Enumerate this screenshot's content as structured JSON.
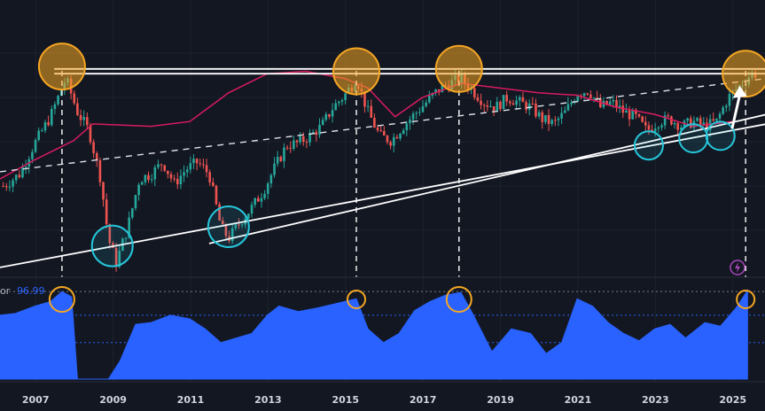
{
  "chart_data": {
    "type": "candlestick",
    "x_axis": {
      "tick_labels": [
        "2007",
        "2009",
        "2011",
        "2013",
        "2015",
        "2017",
        "2019",
        "2021",
        "2023",
        "2025"
      ],
      "range": [
        2006.1,
        2025.85
      ]
    },
    "price_pane": {
      "ylim": [
        0,
        100
      ],
      "candles_monthly_close_approx": [
        [
          2006.2,
          37
        ],
        [
          2006.6,
          42
        ],
        [
          2007.0,
          55
        ],
        [
          2007.4,
          66
        ],
        [
          2007.8,
          82
        ],
        [
          2008.1,
          68
        ],
        [
          2008.4,
          60
        ],
        [
          2008.7,
          40
        ],
        [
          2008.9,
          15
        ],
        [
          2009.1,
          5
        ],
        [
          2009.4,
          20
        ],
        [
          2009.7,
          40
        ],
        [
          2010.0,
          42
        ],
        [
          2010.3,
          47
        ],
        [
          2010.6,
          38
        ],
        [
          2010.9,
          44
        ],
        [
          2011.2,
          47
        ],
        [
          2011.5,
          42
        ],
        [
          2011.8,
          20
        ],
        [
          2012.0,
          15
        ],
        [
          2012.3,
          22
        ],
        [
          2012.6,
          28
        ],
        [
          2012.9,
          35
        ],
        [
          2013.2,
          45
        ],
        [
          2013.5,
          54
        ],
        [
          2013.8,
          55
        ],
        [
          2014.1,
          58
        ],
        [
          2014.4,
          62
        ],
        [
          2014.7,
          70
        ],
        [
          2015.0,
          75
        ],
        [
          2015.3,
          82
        ],
        [
          2015.6,
          68
        ],
        [
          2015.9,
          58
        ],
        [
          2016.2,
          56
        ],
        [
          2016.5,
          62
        ],
        [
          2016.8,
          67
        ],
        [
          2017.1,
          72
        ],
        [
          2017.4,
          77
        ],
        [
          2017.7,
          80
        ],
        [
          2018.0,
          82
        ],
        [
          2018.3,
          77
        ],
        [
          2018.6,
          72
        ],
        [
          2018.9,
          70
        ],
        [
          2019.2,
          74
        ],
        [
          2019.5,
          72
        ],
        [
          2019.8,
          70
        ],
        [
          2020.1,
          65
        ],
        [
          2020.4,
          63
        ],
        [
          2020.7,
          68
        ],
        [
          2021.0,
          76
        ],
        [
          2021.3,
          77
        ],
        [
          2021.6,
          70
        ],
        [
          2021.9,
          72
        ],
        [
          2022.2,
          68
        ],
        [
          2022.5,
          66
        ],
        [
          2022.8,
          60
        ],
        [
          2023.1,
          64
        ],
        [
          2023.4,
          65
        ],
        [
          2023.7,
          62
        ],
        [
          2024.0,
          64
        ],
        [
          2024.3,
          62
        ],
        [
          2024.6,
          64
        ],
        [
          2024.9,
          74
        ],
        [
          2025.2,
          79
        ],
        [
          2025.5,
          84
        ]
      ],
      "moving_average_approx": [
        [
          2006.1,
          40
        ],
        [
          2007.0,
          48
        ],
        [
          2008.0,
          56
        ],
        [
          2008.5,
          63
        ],
        [
          2010.0,
          62
        ],
        [
          2011.0,
          64
        ],
        [
          2012.0,
          76
        ],
        [
          2013.0,
          84
        ],
        [
          2014.0,
          85
        ],
        [
          2015.0,
          82
        ],
        [
          2015.6,
          78
        ],
        [
          2016.3,
          66
        ],
        [
          2017.0,
          74
        ],
        [
          2018.0,
          80
        ],
        [
          2019.0,
          78
        ],
        [
          2020.0,
          76
        ],
        [
          2021.0,
          75
        ],
        [
          2022.0,
          70
        ],
        [
          2023.0,
          67
        ],
        [
          2024.0,
          62
        ],
        [
          2025.0,
          64
        ]
      ],
      "trendlines": [
        {
          "style": "solid",
          "from": [
            2006.1,
            3
          ],
          "to": [
            2025.9,
            63
          ]
        },
        {
          "style": "solid",
          "from": [
            2011.5,
            13
          ],
          "to": [
            2025.9,
            67
          ]
        },
        {
          "style": "dashed",
          "from": [
            2006.1,
            43
          ],
          "to": [
            2025.9,
            82
          ]
        },
        {
          "style": "solid",
          "from": [
            2007.5,
            86
          ],
          "to": [
            2025.9,
            86
          ]
        },
        {
          "style": "solid",
          "from": [
            2007.5,
            84
          ],
          "to": [
            2025.9,
            84
          ]
        }
      ],
      "highlight_circles": [
        {
          "color": "#f5a623",
          "x": 2007.7,
          "y": 87
        },
        {
          "color": "#f5a623",
          "x": 2015.3,
          "y": 85
        },
        {
          "color": "#f5a623",
          "x": 2017.95,
          "y": 86
        },
        {
          "color": "#f5a623",
          "x": 2025.35,
          "y": 84
        },
        {
          "color": "#26c6da",
          "x": 2009.0,
          "y": 12
        },
        {
          "color": "#26c6da",
          "x": 2012.0,
          "y": 20
        },
        {
          "color": "#26c6da",
          "x": 2022.85,
          "y": 54
        },
        {
          "color": "#26c6da",
          "x": 2024.0,
          "y": 57
        },
        {
          "color": "#26c6da",
          "x": 2024.7,
          "y": 58
        }
      ],
      "arrow": {
        "from": [
          2025.0,
          61
        ],
        "to": [
          2025.2,
          79
        ]
      },
      "vertical_dashed_lines_x": [
        2007.7,
        2015.3,
        2017.95,
        2025.35
      ]
    },
    "indicator_pane": {
      "label": "or",
      "value_label": "96.99",
      "ylim": [
        0,
        100
      ],
      "reference_lines": [
        96,
        70,
        40
      ],
      "values_approx": [
        [
          2006.1,
          70
        ],
        [
          2006.5,
          72
        ],
        [
          2007.0,
          80
        ],
        [
          2007.4,
          85
        ],
        [
          2007.7,
          96
        ],
        [
          2007.95,
          90
        ],
        [
          2008.1,
          0
        ],
        [
          2008.9,
          0
        ],
        [
          2009.2,
          20
        ],
        [
          2009.6,
          60
        ],
        [
          2010.0,
          62
        ],
        [
          2010.5,
          70
        ],
        [
          2011.0,
          66
        ],
        [
          2011.4,
          55
        ],
        [
          2011.8,
          40
        ],
        [
          2012.2,
          45
        ],
        [
          2012.6,
          50
        ],
        [
          2013.0,
          70
        ],
        [
          2013.3,
          80
        ],
        [
          2013.8,
          74
        ],
        [
          2014.3,
          78
        ],
        [
          2014.8,
          83
        ],
        [
          2015.3,
          88
        ],
        [
          2015.6,
          55
        ],
        [
          2016.0,
          40
        ],
        [
          2016.4,
          50
        ],
        [
          2016.8,
          75
        ],
        [
          2017.2,
          85
        ],
        [
          2017.6,
          92
        ],
        [
          2018.0,
          95
        ],
        [
          2018.3,
          72
        ],
        [
          2018.8,
          30
        ],
        [
          2019.3,
          55
        ],
        [
          2019.8,
          50
        ],
        [
          2020.2,
          28
        ],
        [
          2020.6,
          40
        ],
        [
          2021.0,
          88
        ],
        [
          2021.4,
          80
        ],
        [
          2021.8,
          62
        ],
        [
          2022.2,
          50
        ],
        [
          2022.6,
          42
        ],
        [
          2023.0,
          55
        ],
        [
          2023.4,
          60
        ],
        [
          2023.8,
          45
        ],
        [
          2024.3,
          62
        ],
        [
          2024.7,
          58
        ],
        [
          2025.1,
          78
        ],
        [
          2025.4,
          96.99
        ]
      ]
    }
  }
}
